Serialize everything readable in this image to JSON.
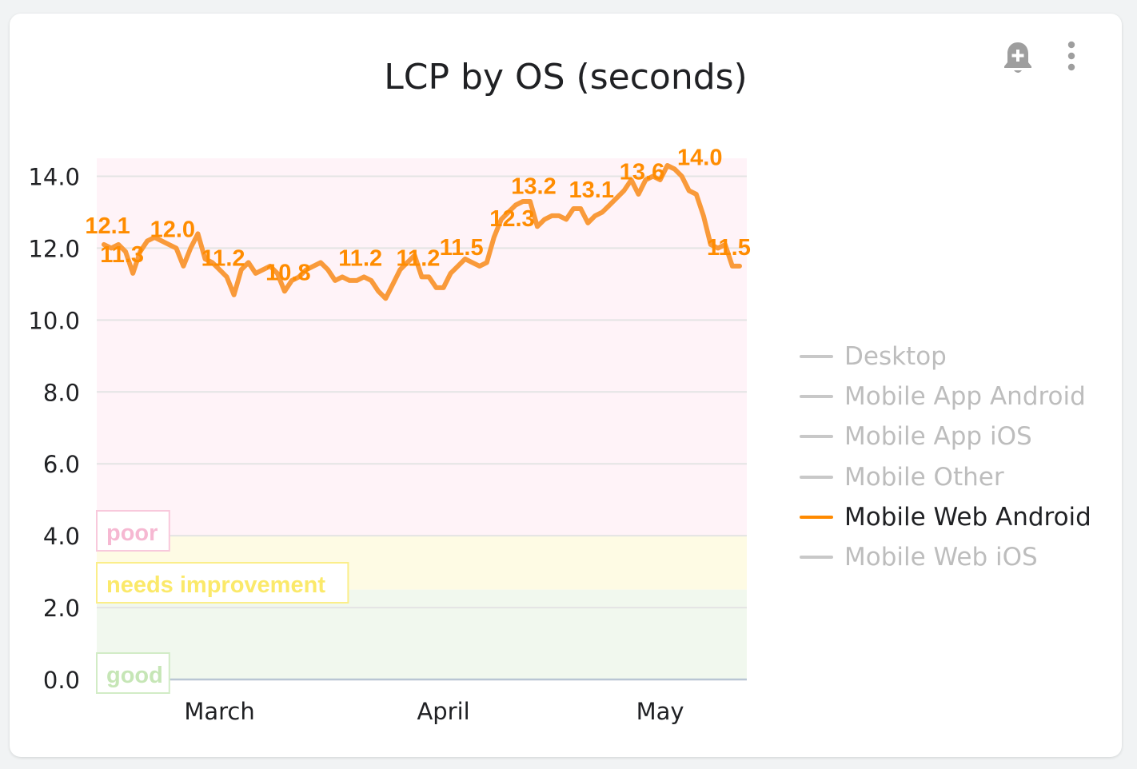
{
  "card": {
    "title": "LCP by OS (seconds)",
    "icons": {
      "alert": "add-alert-bell-icon",
      "menu": "more-vert-icon"
    }
  },
  "chart_data": {
    "type": "line",
    "title": "LCP by OS (seconds)",
    "xlabel": "",
    "ylabel": "",
    "ylim": [
      0,
      14.5
    ],
    "y_ticks": [
      "14.0",
      "12.0",
      "10.0",
      "8.0",
      "6.0",
      "4.0",
      "2.0",
      "0.0"
    ],
    "y_tick_values": [
      14,
      12,
      10,
      8,
      6,
      4,
      2,
      0
    ],
    "x_ticks": [
      {
        "label": "March",
        "day": 11
      },
      {
        "label": "April",
        "day": 42
      },
      {
        "label": "May",
        "day": 72
      }
    ],
    "x_range_days": [
      -6,
      84
    ],
    "grid": true,
    "legend_position": "right",
    "bands": [
      {
        "label": "good",
        "from": 0,
        "to": 2.5,
        "fill": "#f1f8ee",
        "stroke": "#d2ecc6",
        "text": "#c6e6b6"
      },
      {
        "label": "needs improvement",
        "from": 2.5,
        "to": 4,
        "fill": "#fefbe4",
        "stroke": "#fbee8a",
        "text": "#fbe96a"
      },
      {
        "label": "poor",
        "from": 4,
        "to": 14.5,
        "fill": "#fff3f8",
        "stroke": "#f8c9dc",
        "text": "#f6b8d2"
      }
    ],
    "series": [
      {
        "name": "Mobile Web Android",
        "color": "#f99a3a",
        "x": [
          -5,
          -4,
          -3,
          -2,
          -1,
          0,
          1,
          2,
          3,
          4,
          5,
          6,
          7,
          8,
          9,
          10,
          11,
          12,
          13,
          14,
          15,
          16,
          17,
          18,
          19,
          20,
          21,
          22,
          23,
          24,
          25,
          26,
          27,
          28,
          29,
          30,
          31,
          32,
          33,
          34,
          35,
          36,
          37,
          38,
          39,
          40,
          41,
          42,
          43,
          44,
          45,
          46,
          47,
          48,
          49,
          50,
          51,
          52,
          53,
          54,
          55,
          56,
          57,
          58,
          59,
          60,
          61,
          62,
          63,
          64,
          65,
          66,
          67,
          68,
          69,
          70,
          71,
          72,
          73,
          74,
          75,
          76,
          77,
          78,
          79,
          80,
          81,
          82,
          83
        ],
        "values": [
          12.1,
          12.0,
          12.1,
          11.9,
          11.3,
          11.9,
          12.2,
          12.3,
          12.2,
          12.1,
          12.0,
          11.5,
          12.0,
          12.4,
          11.7,
          11.6,
          11.4,
          11.2,
          10.7,
          11.4,
          11.6,
          11.3,
          11.4,
          11.5,
          11.3,
          10.8,
          11.1,
          11.2,
          11.4,
          11.5,
          11.6,
          11.4,
          11.1,
          11.2,
          11.1,
          11.1,
          11.2,
          11.1,
          10.8,
          10.6,
          11.0,
          11.4,
          11.6,
          11.8,
          11.2,
          11.2,
          10.9,
          10.9,
          11.3,
          11.5,
          11.7,
          11.6,
          11.5,
          11.6,
          12.3,
          12.8,
          13.0,
          13.2,
          13.3,
          13.3,
          12.6,
          12.8,
          12.9,
          12.9,
          12.8,
          13.1,
          13.1,
          12.7,
          12.9,
          13.0,
          13.2,
          13.4,
          13.6,
          13.9,
          13.5,
          13.9,
          14.0,
          13.9,
          14.3,
          14.2,
          14.0,
          13.6,
          13.5,
          12.9,
          12.1,
          12.0,
          12.1,
          11.5,
          11.5
        ]
      }
    ],
    "data_labels": [
      {
        "x": -4.5,
        "y": 12.1,
        "text": "12.1"
      },
      {
        "x": -2.5,
        "y": 11.3,
        "text": "11.3"
      },
      {
        "x": 4.5,
        "y": 12.0,
        "text": "12.0"
      },
      {
        "x": 11.5,
        "y": 11.2,
        "text": "11.2"
      },
      {
        "x": 20.5,
        "y": 10.8,
        "text": "10.8"
      },
      {
        "x": 30.5,
        "y": 11.2,
        "text": "11.2"
      },
      {
        "x": 38.5,
        "y": 11.2,
        "text": "11.2"
      },
      {
        "x": 44.5,
        "y": 11.5,
        "text": "11.5"
      },
      {
        "x": 51.5,
        "y": 12.3,
        "text": "12.3"
      },
      {
        "x": 54.5,
        "y": 13.2,
        "text": "13.2"
      },
      {
        "x": 62.5,
        "y": 13.1,
        "text": "13.1"
      },
      {
        "x": 69.5,
        "y": 13.6,
        "text": "13.6"
      },
      {
        "x": 77.5,
        "y": 14.0,
        "text": "14.0"
      },
      {
        "x": 81.5,
        "y": 11.5,
        "text": "11.5"
      }
    ]
  },
  "legend": [
    {
      "label": "Desktop",
      "color": "#c8c8c8",
      "text_color": "#bdbdbd",
      "active": false
    },
    {
      "label": "Mobile App Android",
      "color": "#c8c8c8",
      "text_color": "#bdbdbd",
      "active": false
    },
    {
      "label": "Mobile App iOS",
      "color": "#c8c8c8",
      "text_color": "#bdbdbd",
      "active": false
    },
    {
      "label": "Mobile Other",
      "color": "#c8c8c8",
      "text_color": "#bdbdbd",
      "active": false
    },
    {
      "label": "Mobile Web Android",
      "color": "#ff8a00",
      "text_color": "#202124",
      "active": true
    },
    {
      "label": "Mobile Web iOS",
      "color": "#c8c8c8",
      "text_color": "#bdbdbd",
      "active": false
    }
  ],
  "colors": {
    "data_label": "#ff8c00",
    "grid": "#e4e4e4",
    "baseline": "#b9c6d4",
    "axis_text": "#202124",
    "icon": "#9e9e9e"
  }
}
